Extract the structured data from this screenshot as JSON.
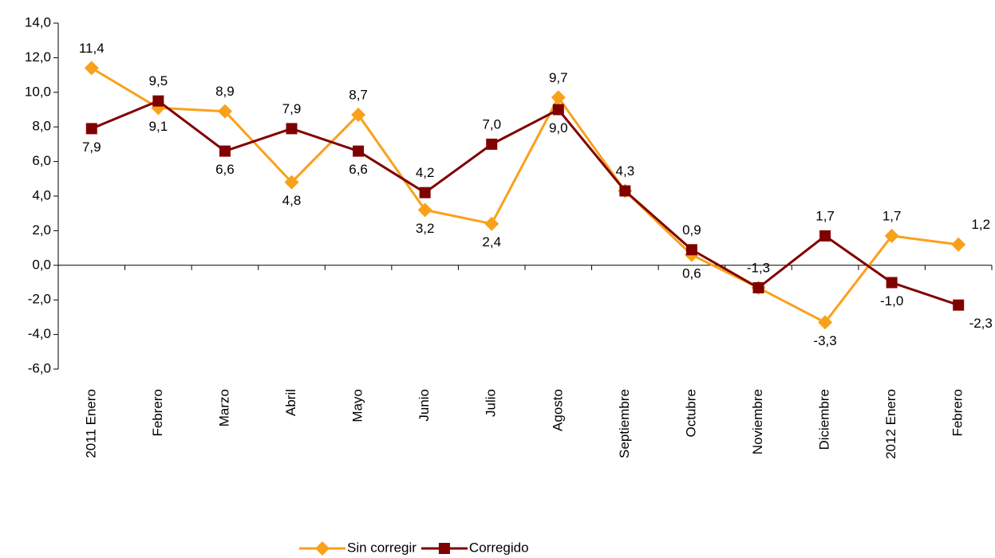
{
  "chart_data": {
    "type": "line",
    "categories": [
      "2011 Enero",
      "Febrero",
      "Marzo",
      "Abril",
      "Mayo",
      "Junio",
      "Julio",
      "Agosto",
      "Septiembre",
      "Octubre",
      "Noviembre",
      "Diciembre",
      "2012 Enero",
      "Febrero"
    ],
    "series": [
      {
        "name": "Sin corregir",
        "color": "#f9a11b",
        "marker": "diamond",
        "values": [
          11.4,
          9.1,
          8.9,
          4.8,
          8.7,
          3.2,
          2.4,
          9.7,
          4.3,
          0.6,
          -1.3,
          -3.3,
          1.7,
          1.2
        ],
        "value_labels": [
          "11,4",
          "9,1",
          "8,9",
          "4,8",
          "8,7",
          "3,2",
          "2,4",
          "9,7",
          "4,3",
          "0,6",
          "-1,3",
          "-3,3",
          "1,7",
          "1,2"
        ]
      },
      {
        "name": "Corregido",
        "color": "#800000",
        "marker": "square",
        "values": [
          7.9,
          9.5,
          6.6,
          7.9,
          6.6,
          4.2,
          7.0,
          9.0,
          4.3,
          0.9,
          -1.3,
          1.7,
          -1.0,
          -2.3
        ],
        "value_labels": [
          "7,9",
          "9,5",
          "6,6",
          "7,9",
          "6,6",
          "4,2",
          "7,0",
          "9,0",
          null,
          "0,9",
          null,
          "1,7",
          "-1,0",
          "-2,3"
        ]
      }
    ],
    "ylim": [
      -6,
      14
    ],
    "yticks": [
      {
        "value": -6,
        "label": "-6,0"
      },
      {
        "value": -4,
        "label": "-4,0"
      },
      {
        "value": -2,
        "label": "-2,0"
      },
      {
        "value": 0,
        "label": "0,0"
      },
      {
        "value": 2,
        "label": "2,0"
      },
      {
        "value": 4,
        "label": "4,0"
      },
      {
        "value": 6,
        "label": "6,0"
      },
      {
        "value": 8,
        "label": "8,0"
      },
      {
        "value": 10,
        "label": "10,0"
      },
      {
        "value": 12,
        "label": "12,0"
      },
      {
        "value": 14,
        "label": "14,0"
      }
    ],
    "legend": "bottom"
  }
}
